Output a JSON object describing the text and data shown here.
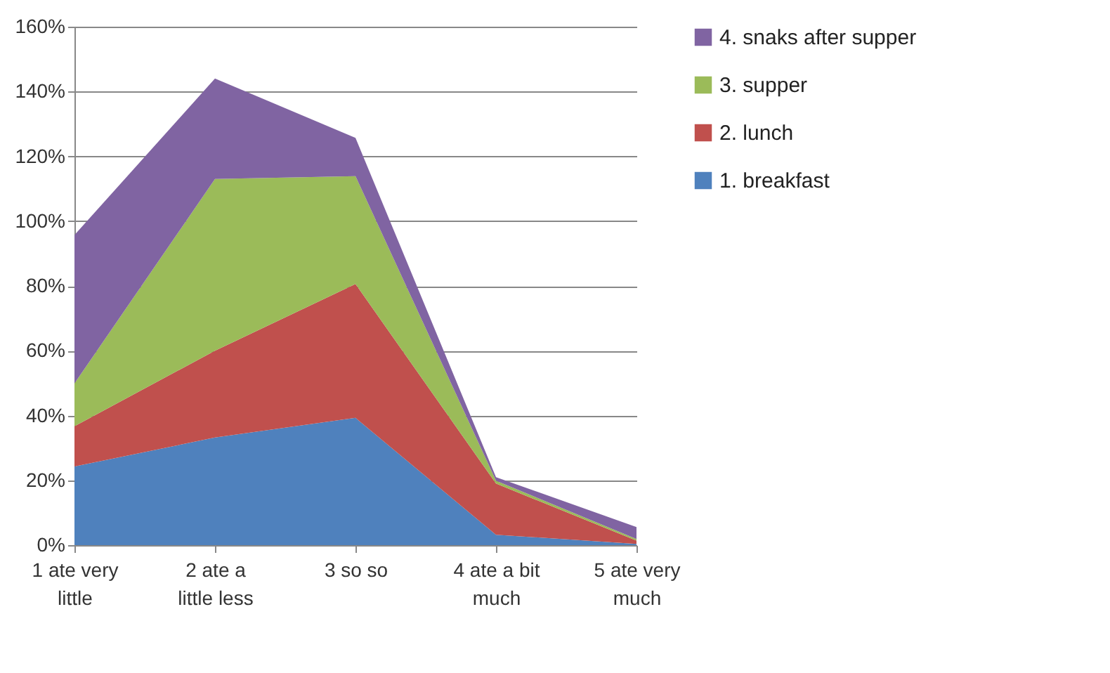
{
  "chart_data": {
    "type": "area",
    "stacked": true,
    "categories": [
      "1 ate very little",
      "2 ate a little less",
      "3 so so",
      "4 ate a bit much",
      "5 ate very much"
    ],
    "series": [
      {
        "name": "1. breakfast",
        "color": "#4f81bd",
        "values": [
          24.3,
          33.2,
          39.3,
          3.2,
          0.4
        ]
      },
      {
        "name": "2. lunch",
        "color": "#c0504d",
        "values": [
          12.4,
          26.8,
          41.3,
          15.8,
          1.0
        ]
      },
      {
        "name": "3. supper",
        "color": "#9bbb59",
        "values": [
          13.2,
          53,
          33.3,
          0.9,
          0.5
        ]
      },
      {
        "name": "4. snaks after supper",
        "color": "#8064a2",
        "values": [
          45.8,
          31,
          11.8,
          1.1,
          3.7
        ]
      }
    ],
    "ylim": [
      0,
      160
    ],
    "yticks": [
      {
        "value": 0,
        "label": "0%"
      },
      {
        "value": 20,
        "label": "20%"
      },
      {
        "value": 40,
        "label": "40%"
      },
      {
        "value": 60,
        "label": "60%"
      },
      {
        "value": 80,
        "label": "80%"
      },
      {
        "value": 100,
        "label": "100%"
      },
      {
        "value": 120,
        "label": "120%"
      },
      {
        "value": 140,
        "label": "140%"
      },
      {
        "value": 160,
        "label": "160%"
      }
    ],
    "grid": "y",
    "legend": "right"
  }
}
